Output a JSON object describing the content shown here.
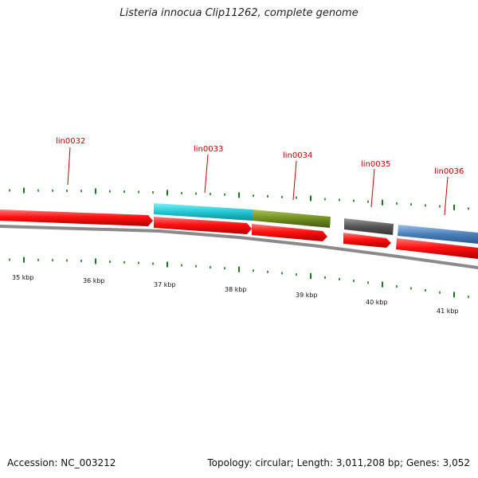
{
  "title": "Listeria innocua Clip11262, complete genome",
  "accession": "Accession: NC_003212",
  "summary": "Topology: circular; Length: 3,011,208 bp; Genes: 3,052",
  "genes": [
    {
      "name": "lin0032",
      "color": "#e80000"
    },
    {
      "name": "lin0033",
      "color": "#26c8d2"
    },
    {
      "name": "lin0034",
      "color": "#6f8f1f"
    },
    {
      "name": "lin0035",
      "color": "#555555"
    },
    {
      "name": "lin0036",
      "color": "#4a7fb8"
    }
  ],
  "kbp_labels": [
    "35 kbp",
    "36 kbp",
    "37 kbp",
    "38 kbp",
    "39 kbp",
    "40 kbp",
    "41 kbp"
  ],
  "colors": {
    "cds": "#e80000",
    "tick": "#1a7a1a",
    "backbone": "#888888",
    "label": "#cc0000"
  }
}
